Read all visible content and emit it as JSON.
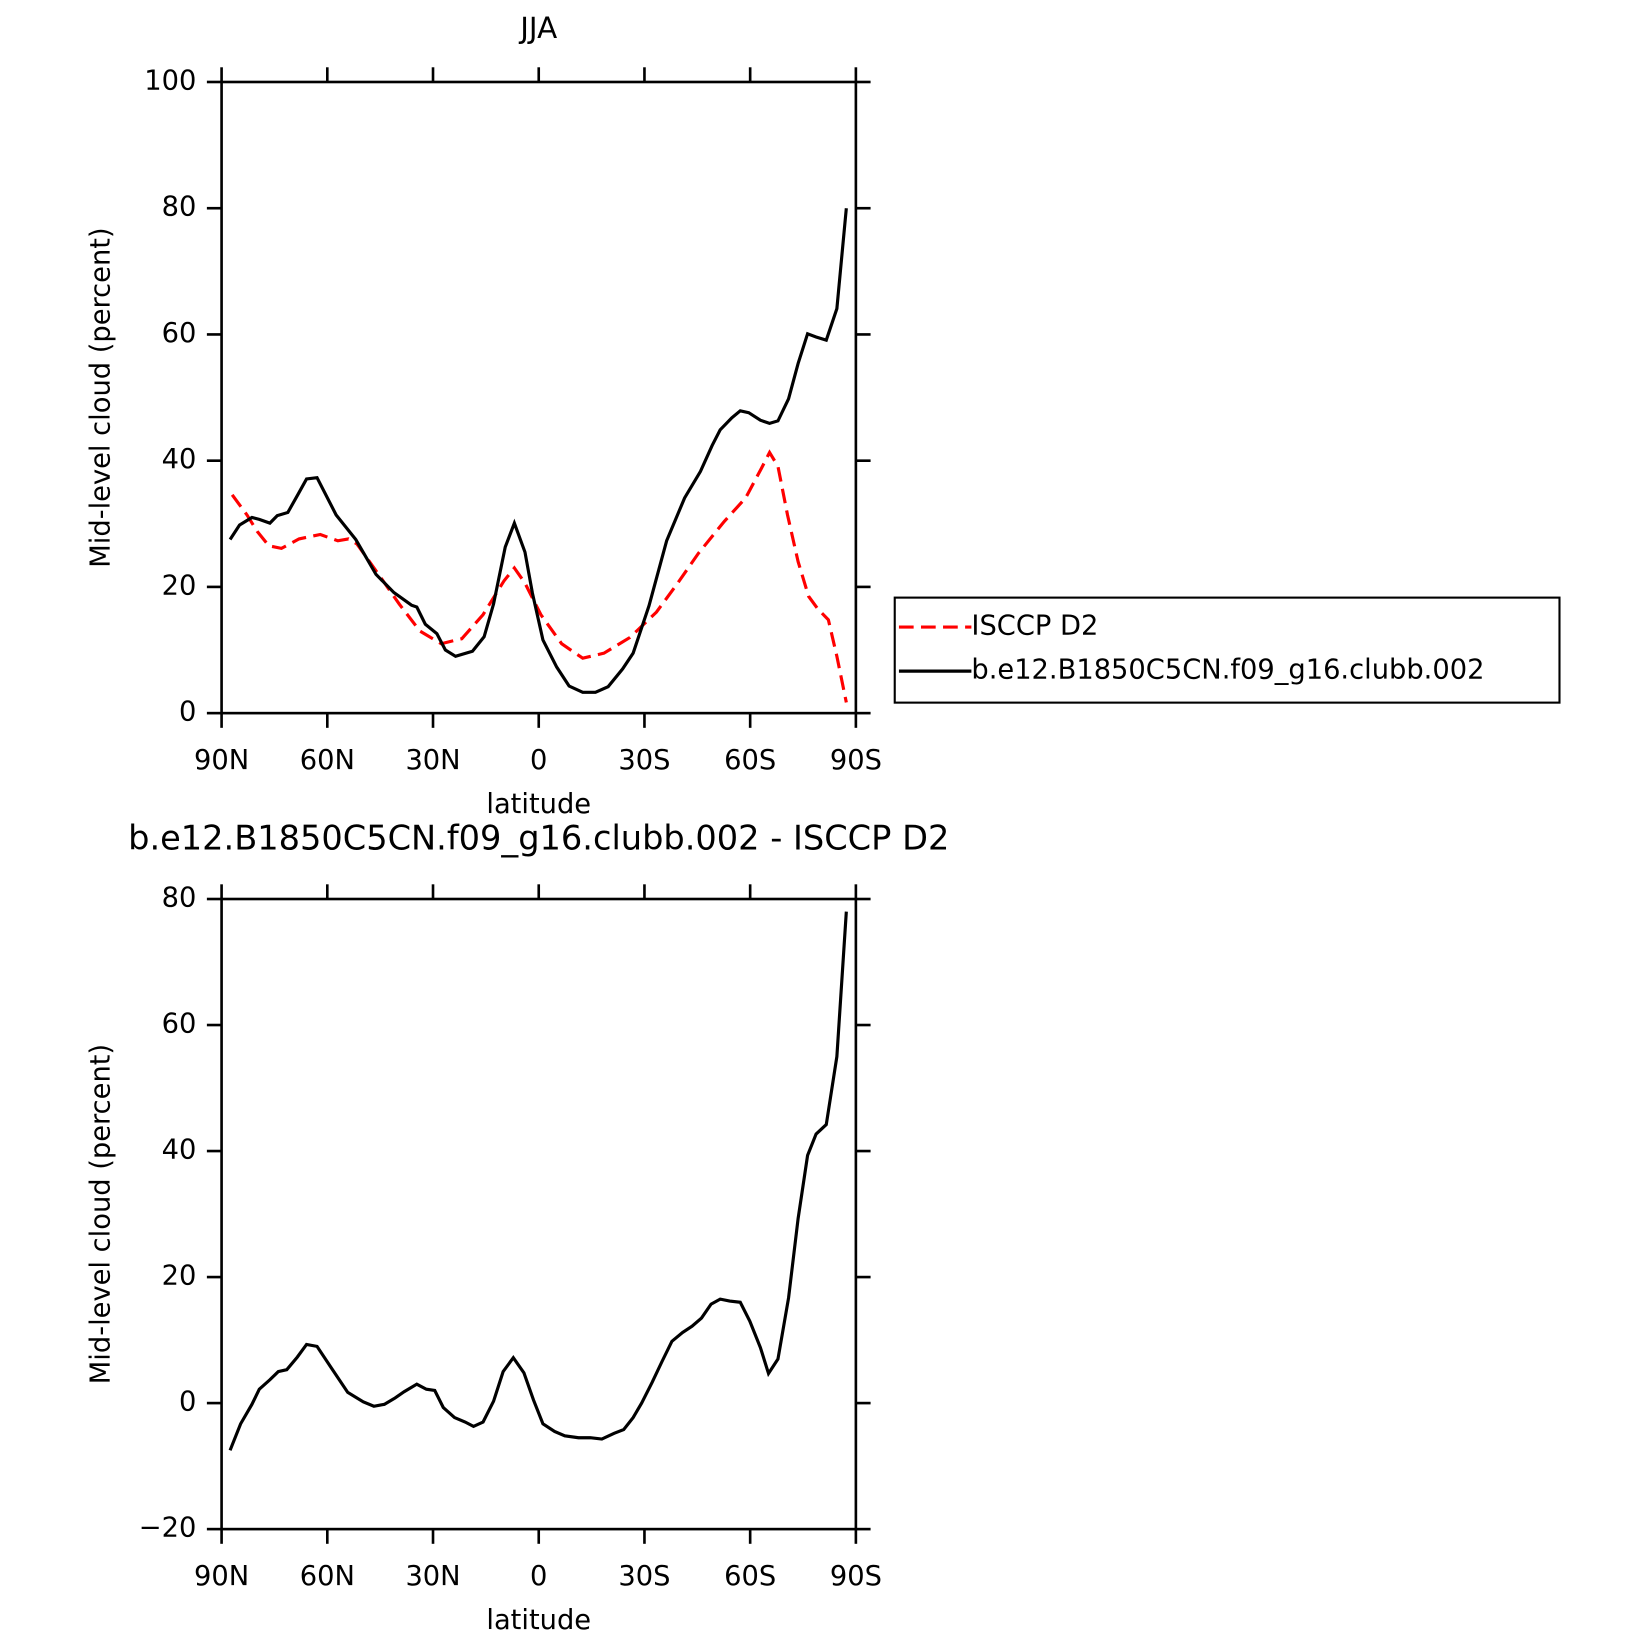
{
  "chart_data": [
    {
      "type": "line",
      "title": "JJA",
      "xlabel": "latitude",
      "ylabel": "Mid-level cloud (percent)",
      "xlim": [
        90,
        -90
      ],
      "xticks": [
        {
          "value": 90,
          "label": "90N"
        },
        {
          "value": 60,
          "label": "60N"
        },
        {
          "value": 30,
          "label": "30N"
        },
        0,
        {
          "value": -30,
          "label": "30S"
        },
        {
          "value": -60,
          "label": "60S"
        },
        {
          "value": -90,
          "label": "90S"
        }
      ],
      "ylim": [
        0,
        100
      ],
      "yticks": [
        0,
        20,
        40,
        60,
        80,
        100
      ],
      "legend": "right",
      "series": [
        {
          "name": "ISCCP D2",
          "color": "#ff0000",
          "linestyle": "dashed",
          "x": [
            87,
            82.8,
            79.9,
            76.6,
            73,
            68,
            62,
            57,
            54,
            51.6,
            45.6,
            39.6,
            33.7,
            27.7,
            21.8,
            15.8,
            9.8,
            6.9,
            3.9,
            -0.6,
            -6.5,
            -12.5,
            -18.5,
            -25.9,
            -33.4,
            -39.3,
            -45.3,
            -52.7,
            -58.7,
            -63.2,
            -65.5,
            -67.9,
            -70.6,
            -73.6,
            -76.6,
            -79.2,
            -82.2,
            -84.6,
            -87.3
          ],
          "values": [
            34.6,
            31.4,
            28.8,
            26.5,
            26.1,
            27.6,
            28.3,
            27.3,
            27.6,
            26.8,
            22.1,
            17.3,
            13,
            11,
            11.8,
            15.6,
            21,
            23,
            20.6,
            15.6,
            11,
            8.7,
            9.5,
            12,
            16,
            20.5,
            25.3,
            30.4,
            34.1,
            38.8,
            41.3,
            39.1,
            31.4,
            24,
            18.5,
            16.5,
            14.8,
            9,
            1.7
          ]
        },
        {
          "name": "b.e12.B1850C5CN.f09_g16.clubb.002",
          "color": "#000000",
          "linestyle": "solid",
          "x": [
            87.6,
            84.9,
            81.4,
            79.3,
            76.3,
            74.2,
            71.2,
            68.2,
            65.9,
            62.9,
            57.5,
            51.9,
            46.2,
            41.1,
            36.1,
            34.6,
            32.2,
            28.9,
            26.5,
            23.6,
            18.8,
            15.5,
            12.8,
            9.5,
            6.9,
            3.9,
            1.8,
            -1.2,
            -5.1,
            -8.6,
            -12.5,
            -16.1,
            -19.7,
            -23.8,
            -26.8,
            -31.3,
            -36.3,
            -41.4,
            -45.9,
            -49.2,
            -51.5,
            -54.8,
            -57.2,
            -59.6,
            -62.9,
            -65.5,
            -67.9,
            -70.9,
            -73.6,
            -76.3,
            -78.7,
            -81.6,
            -84.6,
            -87.3
          ],
          "values": [
            27.5,
            29.8,
            31,
            30.7,
            30.1,
            31.3,
            31.8,
            34.8,
            37.1,
            37.3,
            31.4,
            27.5,
            22,
            19.1,
            17.1,
            16.8,
            14.1,
            12.6,
            10,
            9,
            9.8,
            12.1,
            17.3,
            26.3,
            30.1,
            25.5,
            19,
            11.6,
            7.3,
            4.3,
            3.3,
            3.3,
            4.2,
            7,
            9.5,
            17,
            27.3,
            34.1,
            38.3,
            42.4,
            44.9,
            46.8,
            47.9,
            47.6,
            46.4,
            45.9,
            46.3,
            49.8,
            55.4,
            60.1,
            59.6,
            59.1,
            64.1,
            80
          ]
        }
      ]
    },
    {
      "type": "line",
      "title": "b.e12.B1850C5CN.f09_g16.clubb.002 - ISCCP D2",
      "xlabel": "latitude",
      "ylabel": "Mid-level cloud (percent)",
      "xlim": [
        90,
        -90
      ],
      "xticks": [
        {
          "value": 90,
          "label": "90N"
        },
        {
          "value": 60,
          "label": "60N"
        },
        {
          "value": 30,
          "label": "30N"
        },
        0,
        {
          "value": -30,
          "label": "30S"
        },
        {
          "value": -60,
          "label": "60S"
        },
        {
          "value": -90,
          "label": "90S"
        }
      ],
      "ylim": [
        -20,
        80
      ],
      "yticks": [
        {
          "value": -20,
          "label": "−20"
        },
        0,
        20,
        40,
        60,
        80
      ],
      "series": [
        {
          "color": "#000000",
          "linestyle": "solid",
          "x": [
            87.6,
            84.6,
            81.4,
            79.3,
            76.3,
            73.9,
            71.5,
            68.5,
            65.9,
            62.9,
            59,
            54.2,
            49.8,
            46.8,
            43.8,
            40.8,
            38.2,
            34.6,
            31.9,
            29.5,
            27.1,
            23.9,
            20.9,
            18.5,
            15.8,
            12.8,
            10.1,
            7.2,
            4.2,
            1.5,
            -1.2,
            -4.5,
            -7.4,
            -11.3,
            -14.6,
            -17.9,
            -21.4,
            -24.1,
            -26.8,
            -29.2,
            -32.2,
            -34.9,
            -37.8,
            -40.8,
            -43.5,
            -46.2,
            -48.9,
            -51.5,
            -54.2,
            -57.2,
            -59.9,
            -62.9,
            -65.2,
            -67.9,
            -70.9,
            -73.6,
            -76.3,
            -78.7,
            -81.6,
            -84.6,
            -87.3
          ],
          "values": [
            -7.5,
            -3.3,
            -0.2,
            2.2,
            3.7,
            5,
            5.3,
            7.3,
            9.3,
            9,
            5.7,
            1.7,
            0.2,
            -0.5,
            -0.2,
            0.8,
            1.8,
            3,
            2.2,
            2,
            -0.7,
            -2.3,
            -3,
            -3.7,
            -3,
            0.3,
            5,
            7.2,
            4.8,
            0.5,
            -3.3,
            -4.5,
            -5.2,
            -5.5,
            -5.5,
            -5.7,
            -4.8,
            -4.2,
            -2.3,
            0,
            3.3,
            6.5,
            9.8,
            11.2,
            12.2,
            13.5,
            15.7,
            16.5,
            16.2,
            16,
            13,
            8.8,
            4.7,
            7,
            16.7,
            29.3,
            39.3,
            42.7,
            44.2,
            55,
            78
          ]
        }
      ]
    }
  ]
}
